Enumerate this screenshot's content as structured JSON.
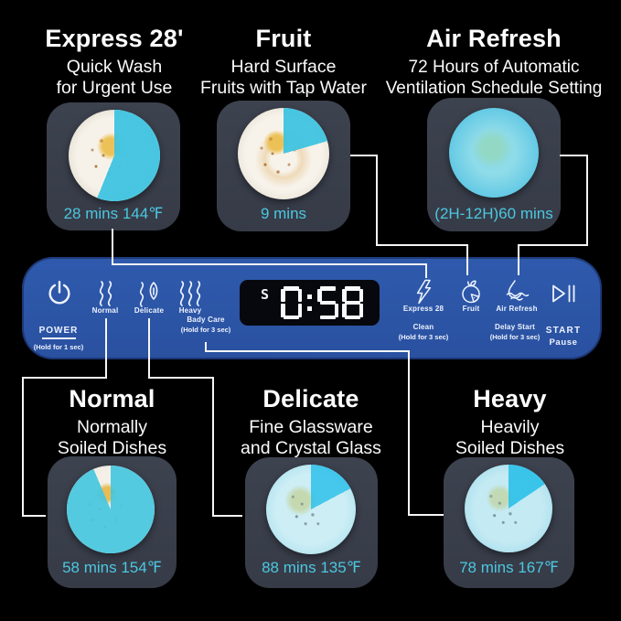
{
  "colors": {
    "background": "#000000",
    "panel_blue": "#2c55a7",
    "accent_cyan": "#4cc7e0",
    "card_bg": "#3a3f4b",
    "display_bg": "#07080d"
  },
  "top_callouts": [
    {
      "id": "express",
      "title": "Express 28'",
      "subtitle_line1": "Quick Wash",
      "subtitle_line2": "for Urgent Use",
      "stat": "28 mins 144℉"
    },
    {
      "id": "fruit",
      "title": "Fruit",
      "subtitle_line1": "Hard Surface",
      "subtitle_line2": "Fruits with Tap Water",
      "stat": "9 mins"
    },
    {
      "id": "air_refresh",
      "title": "Air Refresh",
      "subtitle_line1": "72 Hours of Automatic",
      "subtitle_line2": "Ventilation Schedule Setting",
      "stat": "(2H-12H)60 mins"
    }
  ],
  "bottom_callouts": [
    {
      "id": "normal",
      "title": "Normal",
      "subtitle_line1": "Normally",
      "subtitle_line2": "Soiled Dishes",
      "stat": "58 mins 154℉"
    },
    {
      "id": "delicate",
      "title": "Delicate",
      "subtitle_line1": "Fine Glassware",
      "subtitle_line2": "and Crystal Glass",
      "stat": "88 mins 135℉"
    },
    {
      "id": "heavy",
      "title": "Heavy",
      "subtitle_line1": "Heavily",
      "subtitle_line2": "Soiled Dishes",
      "stat": "78 mins 167℉"
    }
  ],
  "panel": {
    "power": {
      "label": "POWER",
      "hold": "(Hold for 1 sec)"
    },
    "modes": [
      {
        "label": "Normal"
      },
      {
        "label": "Delicate"
      },
      {
        "label": "Heavy"
      }
    ],
    "baby_care": {
      "label": "Bady Care",
      "hold": "(Hold for 3 sec)"
    },
    "display": {
      "time": "0:58",
      "indicator": "S"
    },
    "functions": [
      {
        "label": "Express 28"
      },
      {
        "label": "Fruit"
      },
      {
        "label": "Air Refresh"
      }
    ],
    "clean": {
      "label": "Clean",
      "hold": "(Hold for 3 sec)"
    },
    "delay_start": {
      "label": "Delay Start",
      "hold": "(Hold for 3 sec)"
    },
    "start": {
      "label": "START",
      "sub": "Pause"
    }
  }
}
